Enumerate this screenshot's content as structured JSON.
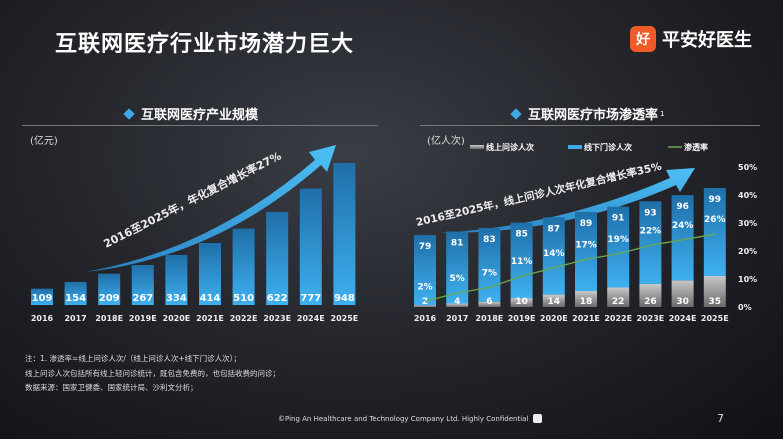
{
  "title": "互联网医疗行业市场潜力巨大",
  "logo": {
    "icon": "好",
    "text": "平安好医生",
    "color": "#f05a28"
  },
  "left_panel": {
    "heading": "互联网医疗产业规模",
    "unit": "(亿元)",
    "arrow_label": "2016至2025年，年化复合增长率27%"
  },
  "right_panel": {
    "heading": "互联网医疗市场渗透率",
    "heading_sup": "1",
    "unit": "(亿人次)",
    "arrow_label": "2016至2025年，线上问诊人次年化复合增长率35%"
  },
  "chart_data": [
    {
      "type": "bar",
      "title": "互联网医疗产业规模",
      "ylabel": "(亿元)",
      "categories": [
        "2016",
        "2017",
        "2018E",
        "2019E",
        "2020E",
        "2021E",
        "2022E",
        "2023E",
        "2024E",
        "2025E"
      ],
      "values": [
        109,
        154,
        209,
        267,
        334,
        414,
        510,
        622,
        777,
        948
      ],
      "color": "#2b8fd4"
    },
    {
      "type": "bar",
      "stacked": true,
      "title": "互联网医疗市场渗透率",
      "ylabel": "(亿人次)",
      "categories": [
        "2016",
        "2017",
        "2018E",
        "2019E",
        "2020E",
        "2021E",
        "2022E",
        "2023E",
        "2024E",
        "2025E"
      ],
      "series": [
        {
          "name": "线上问诊人次",
          "values": [
            2,
            4,
            6,
            10,
            14,
            18,
            22,
            26,
            30,
            35
          ],
          "color": "#9a9a9a"
        },
        {
          "name": "线下门诊人次",
          "values": [
            79,
            81,
            83,
            85,
            87,
            89,
            91,
            93,
            96,
            99
          ],
          "color": "#2f9be0"
        },
        {
          "name": "渗透率",
          "type": "line",
          "axis": "right",
          "values": [
            2,
            5,
            7,
            11,
            14,
            17,
            19,
            22,
            24,
            26
          ],
          "labels": [
            "2%",
            "5%",
            "7%",
            "11%",
            "14%",
            "17%",
            "19%",
            "22%",
            "24%",
            "26%"
          ],
          "color": "#6aa84f"
        }
      ],
      "y2_ticks": [
        "0%",
        "10%",
        "20%",
        "30%",
        "40%",
        "50%"
      ],
      "y2lim": [
        0,
        50
      ]
    }
  ],
  "notes": [
    "注：1. 渗透率=线上问诊人次/（线上问诊人次+线下门诊人次）；",
    "线上问诊人次包括所有线上轻问诊统计，既包含免费的，也包括收费的问诊；",
    "数据来源：国家卫健委、国家统计局、沙利文分析；"
  ],
  "footer": "©Ping An Healthcare and Technology Company Ltd. Highly Confidential",
  "page_number": "7"
}
